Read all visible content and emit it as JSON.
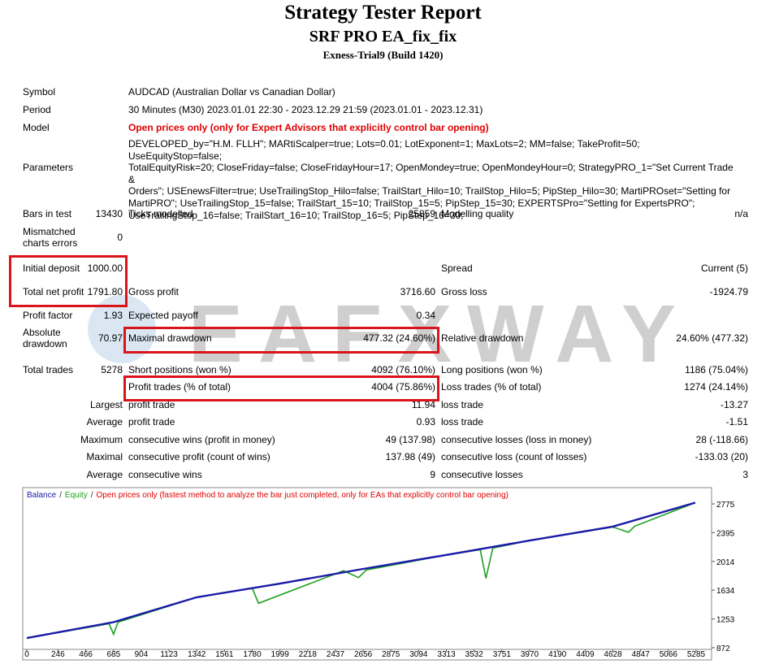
{
  "header": {
    "title": "Strategy Tester Report",
    "subtitle": "SRF PRO EA_fix_fix",
    "server": "Exness-Trial9 (Build 1420)"
  },
  "watermark": "EAFXWAY",
  "info": [
    {
      "label": "Symbol",
      "value": "AUDCAD (Australian Dollar vs Canadian Dollar)"
    },
    {
      "label": "Period",
      "value": "30 Minutes (M30) 2023.01.01 22:30 - 2023.12.29 21:59 (2023.01.01 - 2023.12.31)"
    },
    {
      "label": "Model",
      "value": "Open prices only (only for Expert Advisors that explicitly control bar opening)",
      "highlight": true
    }
  ],
  "parameters": {
    "label": "Parameters",
    "lines": [
      "DEVELOPED_by=\"H.M. FLLH\"; MARtiScalper=true; Lots=0.01; LotExponent=1; MaxLots=2; MM=false; TakeProfit=50; UseEquityStop=false;",
      "TotalEquityRisk=20; CloseFriday=false; CloseFridayHour=17; OpenMondey=true; OpenMondeyHour=0; StrategyPRO_1=\"Set Current Trade &",
      "Orders\"; USEnewsFilter=true; UseTrailingStop_Hilo=false; TrailStart_Hilo=10; TrailStop_Hilo=5; PipStep_Hilo=30; MartiPROset=\"Setting for",
      "MartiPRO\"; UseTrailingStop_15=false; TrailStart_15=10; TrailStop_15=5; PipStep_15=30; EXPERTSPro=\"Setting for ExpertsPRO\";",
      "UseTrailingStop_16=false; TrailStart_16=10; TrailStop_16=5; PipStep_16=30;"
    ]
  },
  "stats": [
    {
      "label": "Bars in test",
      "value": "13430",
      "label2": "Ticks modelled",
      "value2": "25859",
      "label3": "Modelling quality",
      "value3": "n/a"
    },
    {
      "label": "Mismatched charts errors",
      "value": "0"
    },
    {
      "label": "Initial deposit",
      "value": "1000.00",
      "label3": "Spread",
      "value3": "Current (5)"
    },
    {
      "label": "Total net profit",
      "value": "1791.80",
      "label2": "Gross profit",
      "value2": "3716.60",
      "label3": "Gross loss",
      "value3": "-1924.79"
    },
    {
      "label": "Profit factor",
      "value": "1.93",
      "label2": "Expected payoff",
      "value2": "0.34"
    },
    {
      "label": "Absolute drawdown",
      "value": "70.97",
      "label2": "Maximal drawdown",
      "value2": "477.32 (24.60%)",
      "label3": "Relative drawdown",
      "value3": "24.60% (477.32)"
    },
    {
      "label": "Total trades",
      "value": "5278",
      "label2": "Short positions (won %)",
      "value2": "4092 (76.10%)",
      "label3": "Long positions (won %)",
      "value3": "1186 (75.04%)"
    },
    {
      "label2": "Profit trades (% of total)",
      "value2": "4004 (75.86%)",
      "label3": "Loss trades (% of total)",
      "value3": "1274 (24.14%)"
    },
    {
      "value": "Largest",
      "label2": "profit trade",
      "value2": "11.94",
      "label3": "loss trade",
      "value3": "-13.27"
    },
    {
      "value": "Average",
      "label2": "profit trade",
      "value2": "0.93",
      "label3": "loss trade",
      "value3": "-1.51"
    },
    {
      "value": "Maximum",
      "label2": "consecutive wins (profit in money)",
      "value2": "49 (137.98)",
      "label3": "consecutive losses (loss in money)",
      "value3": "28 (-118.66)"
    },
    {
      "value": "Maximal",
      "label2": "consecutive profit (count of wins)",
      "value2": "137.98 (49)",
      "label3": "consecutive loss (count of losses)",
      "value3": "-133.03 (20)"
    },
    {
      "value": "Average",
      "label2": "consecutive wins",
      "value2": "9",
      "label3": "consecutive losses",
      "value3": "3"
    }
  ],
  "chart": {
    "type": "line",
    "legend_separator": "/",
    "note": "Open prices only (fastest method to analyze the bar just completed, only for EAs that explicitly control bar opening)",
    "note_color": "#e00000",
    "xlim": [
      0,
      5407
    ],
    "ylim": [
      861,
      2958
    ],
    "xticks": [
      0,
      246,
      466,
      685,
      904,
      1123,
      1342,
      1561,
      1780,
      1999,
      2218,
      2437,
      2656,
      2875,
      3094,
      3313,
      3532,
      3751,
      3970,
      4190,
      4409,
      4628,
      4847,
      5066,
      5285
    ],
    "yticks": [
      2775,
      2395,
      2014,
      1634,
      1253,
      872
    ],
    "series": [
      {
        "name": "Equity",
        "color": "#1fa01f",
        "x": [
          0,
          650,
          685,
          720,
          1342,
          1780,
          1830,
          2500,
          2620,
          2680,
          3313,
          3580,
          3625,
          3680,
          3970,
          4628,
          4750,
          4800,
          5278
        ],
        "values": [
          1000,
          1190,
          1050,
          1210,
          1540,
          1660,
          1460,
          1890,
          1800,
          1900,
          2100,
          2170,
          1790,
          2190,
          2290,
          2470,
          2400,
          2480,
          2791
        ]
      },
      {
        "name": "Balance",
        "color": "#1a1aa8",
        "x": [
          0,
          685,
          1342,
          1999,
          2656,
          3313,
          3970,
          4628,
          5278
        ],
        "values": [
          1000,
          1210,
          1540,
          1720,
          1915,
          2100,
          2290,
          2475,
          2791
        ]
      }
    ]
  }
}
